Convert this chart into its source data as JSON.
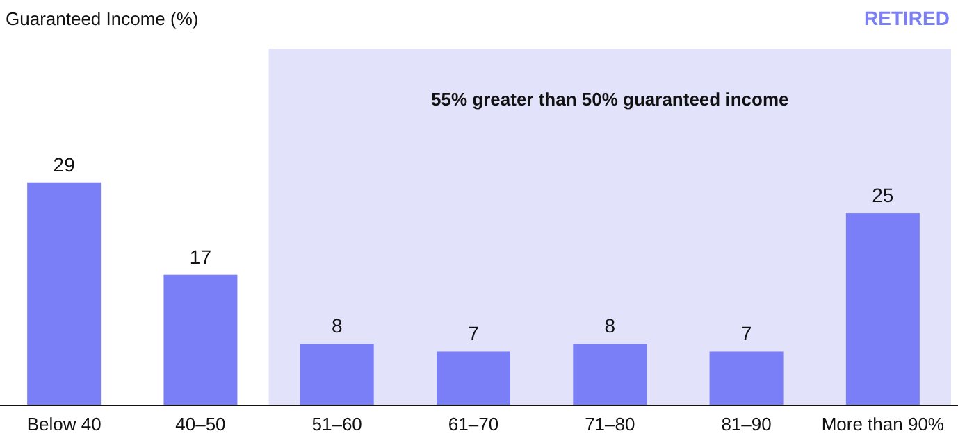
{
  "chart_data": {
    "type": "bar",
    "title": "Guaranteed Income (%)",
    "subtitle": "RETIRED",
    "categories": [
      "Below 40",
      "40–50",
      "51–60",
      "61–70",
      "71–80",
      "81–90",
      "More than 90%"
    ],
    "values": [
      29,
      17,
      8,
      7,
      8,
      7,
      25
    ],
    "color": "#7b7ff7",
    "data_labels": true,
    "bands": [
      {
        "axis": "x",
        "from": "51–60",
        "to": "More than 90%",
        "label": "55% greater than 50% guaranteed income",
        "color": "#e2e3fb"
      }
    ]
  }
}
